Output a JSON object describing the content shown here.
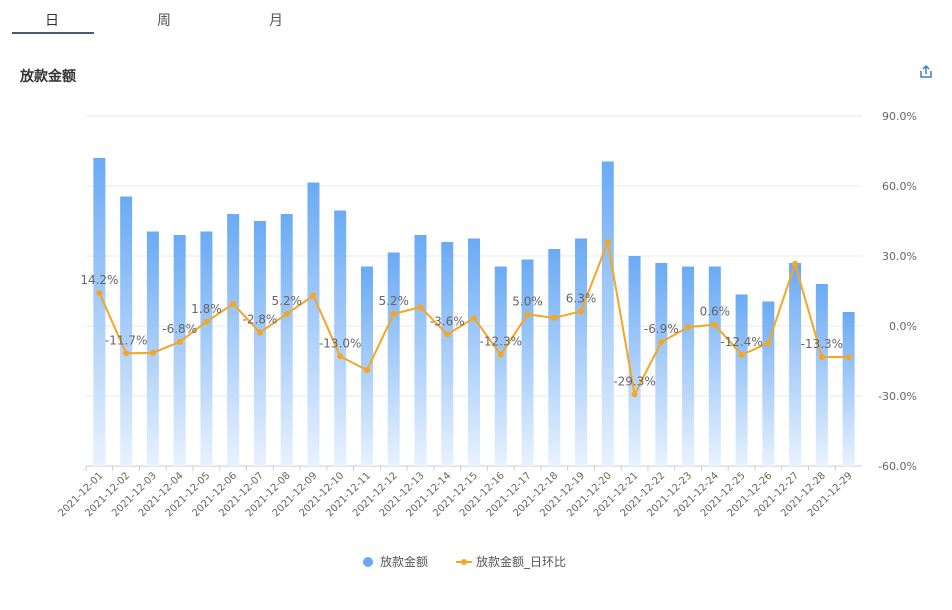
{
  "tabs": [
    "日",
    "周",
    "月"
  ],
  "chart_data": {
    "type": "bar-line",
    "title": "放款金额",
    "categories": [
      "2021-12-01",
      "2021-12-02",
      "2021-12-03",
      "2021-12-04",
      "2021-12-05",
      "2021-12-06",
      "2021-12-07",
      "2021-12-08",
      "2021-12-09",
      "2021-12-10",
      "2021-12-11",
      "2021-12-12",
      "2021-12-13",
      "2021-12-14",
      "2021-12-15",
      "2021-12-16",
      "2021-12-17",
      "2021-12-18",
      "2021-12-19",
      "2021-12-20",
      "2021-12-21",
      "2021-12-22",
      "2021-12-23",
      "2021-12-24",
      "2021-12-25",
      "2021-12-26",
      "2021-12-27",
      "2021-12-28",
      "2021-12-29"
    ],
    "ylim": [
      0,
      100
    ],
    "y2lim": [
      -60,
      90
    ],
    "y2ticks": [
      {
        "value": 90,
        "label": "90.0%"
      },
      {
        "value": 60,
        "label": "60.0%"
      },
      {
        "value": 30,
        "label": "30.0%"
      },
      {
        "value": 0,
        "label": "0.0%"
      },
      {
        "value": -30,
        "label": "-30.0%"
      },
      {
        "value": -60,
        "label": "-60.0%"
      }
    ],
    "grid": true,
    "series": [
      {
        "name": "放款金额",
        "type": "bar",
        "color": "#6aaaf5",
        "values": [
          88,
          77,
          67,
          66,
          67,
          72,
          70,
          72,
          81,
          73,
          57,
          61,
          66,
          64,
          65,
          57,
          59,
          62,
          65,
          87,
          60,
          58,
          57,
          57,
          49,
          47,
          58,
          52,
          44
        ]
      },
      {
        "name": "放款金额_日环比",
        "type": "line",
        "axis": "y2",
        "color": "#f5a623",
        "values": [
          14.2,
          -11.7,
          -11.5,
          -6.8,
          1.8,
          9.5,
          -2.8,
          5.2,
          13,
          -13.0,
          -18.9,
          5.2,
          8.1,
          -3.6,
          3.4,
          -12.3,
          5.0,
          3.5,
          6.3,
          36,
          -29.3,
          -6.9,
          -0.5,
          0.6,
          -12.4,
          -7.3,
          26.6,
          -13.3,
          -13.3
        ],
        "value_labels": [
          "14.2%",
          "-11.7%",
          null,
          "-6.8%",
          "1.8%",
          null,
          "-2.8%",
          "5.2%",
          null,
          "-13.0%",
          null,
          "5.2%",
          null,
          "-3.6%",
          null,
          "-12.3%",
          "5.0%",
          null,
          "6.3%",
          null,
          "-29.3%",
          "-6.9%",
          null,
          "0.6%",
          "-12.4%",
          null,
          null,
          "-13.3%",
          null
        ]
      }
    ]
  }
}
